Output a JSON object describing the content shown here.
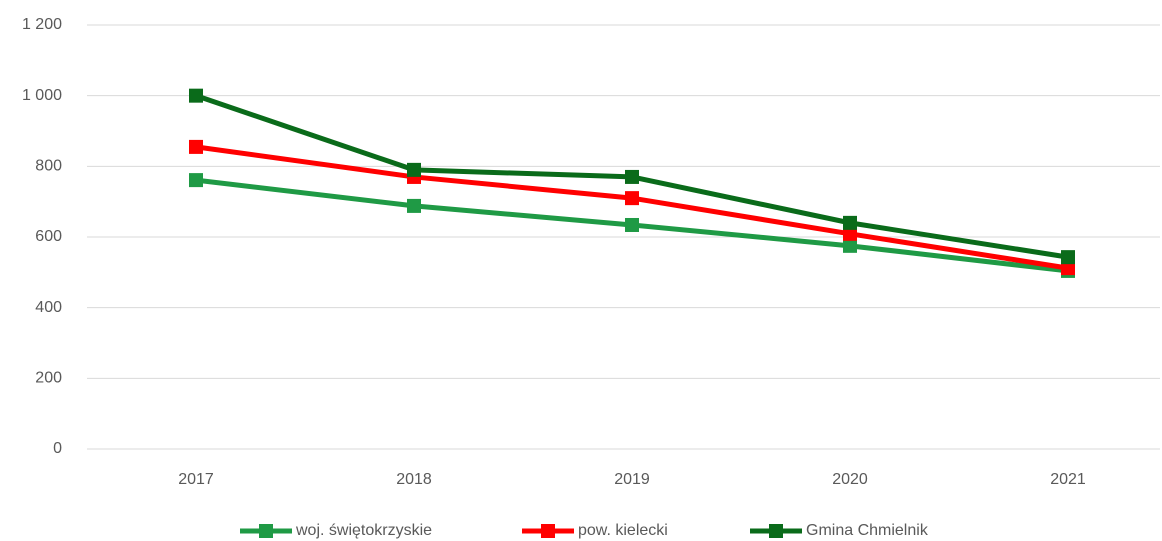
{
  "chart_data": {
    "type": "line",
    "categories": [
      "2017",
      "2018",
      "2019",
      "2020",
      "2021"
    ],
    "series": [
      {
        "name": "woj. świętokrzyskie",
        "color": "#1f9a45",
        "values": [
          761,
          688,
          634,
          575,
          504
        ]
      },
      {
        "name": "pow. kielecki",
        "color": "#ff0000",
        "values": [
          855,
          770,
          710,
          609,
          512
        ]
      },
      {
        "name": "Gmina Chmielnik",
        "color": "#0a6b1a",
        "values": [
          1000,
          790,
          770,
          640,
          543
        ]
      }
    ],
    "ylim": [
      0,
      1200
    ],
    "yticks": [
      0,
      200,
      400,
      600,
      800,
      {
        "value": 1000,
        "label": "1 000"
      },
      {
        "value": 1200,
        "label": "1 200"
      }
    ],
    "grid": true,
    "legend": "bottom"
  }
}
